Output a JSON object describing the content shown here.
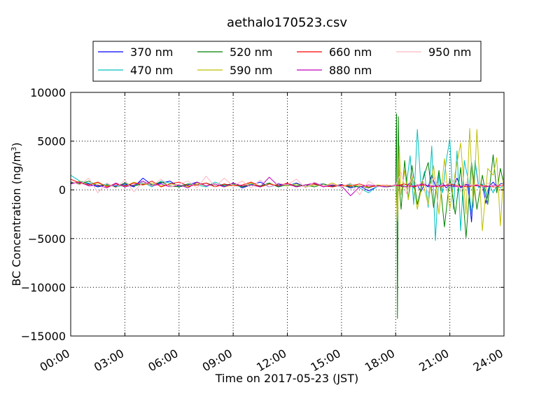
{
  "chart_data": {
    "type": "line",
    "title": "aethalo170523.csv",
    "xlabel": "Time on 2017-05-23 (JST)",
    "ylabel_main": "BC Concentration (ng/m",
    "ylabel_sup": "3",
    "ylabel_close": ")",
    "xlim_hours": [
      0,
      24
    ],
    "ylim": [
      -15000,
      10000
    ],
    "x_ticks": [
      {
        "hour": 0,
        "label": "00:00"
      },
      {
        "hour": 3,
        "label": "03:00"
      },
      {
        "hour": 6,
        "label": "06:00"
      },
      {
        "hour": 9,
        "label": "09:00"
      },
      {
        "hour": 12,
        "label": "12:00"
      },
      {
        "hour": 15,
        "label": "15:00"
      },
      {
        "hour": 18,
        "label": "18:00"
      },
      {
        "hour": 21,
        "label": "21:00"
      },
      {
        "hour": 24,
        "label": "24:00"
      }
    ],
    "y_ticks": [
      {
        "value": 10000,
        "label": "10000"
      },
      {
        "value": 5000,
        "label": "5000"
      },
      {
        "value": 0,
        "label": "0"
      },
      {
        "value": -5000,
        "label": "−5000"
      },
      {
        "value": -10000,
        "label": "−10000"
      },
      {
        "value": -15000,
        "label": "−15000"
      }
    ],
    "grid": true,
    "legend_position": "top",
    "series": [
      {
        "name": "370 nm",
        "color": "#0000ff",
        "x": [
          0,
          0.5,
          1,
          1.5,
          2,
          2.5,
          3,
          3.5,
          4,
          4.5,
          5,
          5.5,
          6,
          6.5,
          7,
          7.5,
          8,
          8.5,
          9,
          9.5,
          10,
          10.5,
          11,
          11.5,
          12,
          12.5,
          13,
          13.5,
          14,
          14.5,
          15,
          15.5,
          16,
          16.5,
          17,
          17.5,
          18,
          18.2,
          18.4,
          18.6,
          18.8,
          19,
          19.2,
          19.4,
          19.6,
          19.8,
          20,
          20.2,
          20.4,
          20.6,
          20.8,
          21,
          21.2,
          21.4,
          21.6,
          21.8,
          22,
          22.2,
          22.4,
          22.6,
          22.8,
          23,
          23.2,
          23.4,
          23.6,
          23.8,
          24
        ],
        "values": [
          700,
          800,
          600,
          300,
          500,
          400,
          600,
          300,
          1200,
          500,
          700,
          900,
          300,
          500,
          800,
          400,
          600,
          350,
          700,
          200,
          500,
          800,
          300,
          600,
          400,
          700,
          300,
          500,
          600,
          350,
          550,
          200,
          400,
          -100,
          350,
          300,
          450,
          500,
          400,
          300,
          800,
          200,
          500,
          -200,
          600,
          300,
          1500,
          400,
          300,
          700,
          200,
          600,
          300,
          1200,
          200,
          500,
          600,
          -3300,
          2800,
          300,
          600,
          -1400,
          400,
          800,
          300,
          600,
          700
        ]
      },
      {
        "name": "470 nm",
        "color": "#00bfbf",
        "x": [
          0,
          0.5,
          1,
          1.5,
          2,
          2.5,
          3,
          3.5,
          4,
          4.5,
          5,
          5.5,
          6,
          6.5,
          7,
          7.5,
          8,
          8.5,
          9,
          9.5,
          10,
          10.5,
          11,
          11.5,
          12,
          12.5,
          13,
          13.5,
          14,
          14.5,
          15,
          15.5,
          16,
          16.5,
          17,
          17.5,
          18,
          18.2,
          18.4,
          18.6,
          18.8,
          19,
          19.2,
          19.4,
          19.6,
          19.8,
          20,
          20.2,
          20.4,
          20.6,
          20.8,
          21,
          21.2,
          21.4,
          21.6,
          21.8,
          22,
          22.2,
          22.4,
          22.6,
          22.8,
          23,
          23.2,
          23.4,
          23.6,
          23.8,
          24
        ],
        "values": [
          1500,
          900,
          700,
          400,
          600,
          300,
          500,
          400,
          800,
          300,
          900,
          700,
          400,
          600,
          500,
          300,
          800,
          400,
          500,
          300,
          600,
          400,
          700,
          300,
          500,
          600,
          300,
          700,
          400,
          500,
          300,
          600,
          200,
          -300,
          400,
          300,
          500,
          400,
          300,
          600,
          3500,
          -1500,
          6200,
          300,
          1900,
          -1800,
          4500,
          -5200,
          1800,
          -300,
          3000,
          5200,
          -2000,
          4000,
          -4200,
          3000,
          1200,
          -2500,
          3000,
          200,
          600,
          -600,
          500,
          -300,
          400,
          200,
          500
        ]
      },
      {
        "name": "520 nm",
        "color": "#008000",
        "x": [
          0,
          0.5,
          1,
          1.5,
          2,
          2.5,
          3,
          3.5,
          4,
          4.5,
          5,
          5.5,
          6,
          6.5,
          7,
          7.5,
          8,
          8.5,
          9,
          9.5,
          10,
          10.5,
          11,
          11.5,
          12,
          12.5,
          13,
          13.5,
          14,
          14.5,
          15,
          15.5,
          16,
          16.5,
          17,
          17.5,
          18,
          18.05,
          18.1,
          18.15,
          18.2,
          18.3,
          18.5,
          18.7,
          18.9,
          19.2,
          19.5,
          19.8,
          20.1,
          20.4,
          20.7,
          21,
          21.3,
          21.6,
          21.9,
          22.2,
          22.5,
          22.8,
          23.1,
          23.4,
          23.6,
          23.8,
          24
        ],
        "values": [
          800,
          600,
          900,
          400,
          500,
          300,
          700,
          400,
          600,
          500,
          800,
          400,
          300,
          600,
          500,
          700,
          400,
          500,
          600,
          300,
          500,
          400,
          700,
          300,
          600,
          400,
          500,
          300,
          600,
          400,
          500,
          300,
          400,
          200,
          500,
          300,
          400,
          7800,
          -13200,
          7500,
          300,
          -2000,
          3000,
          -1000,
          2500,
          -1500,
          1000,
          2800,
          -1800,
          2000,
          -3800,
          1200,
          -2500,
          2300,
          -4900,
          2800,
          -2000,
          1500,
          -1500,
          3600,
          -300,
          2200,
          500
        ]
      },
      {
        "name": "590 nm",
        "color": "#bfbf00",
        "x": [
          0,
          0.5,
          1,
          1.5,
          2,
          2.5,
          3,
          3.5,
          4,
          4.5,
          5,
          5.5,
          6,
          6.5,
          7,
          7.5,
          8,
          8.5,
          9,
          9.5,
          10,
          10.5,
          11,
          11.5,
          12,
          12.5,
          13,
          13.5,
          14,
          14.5,
          15,
          15.5,
          16,
          16.5,
          17,
          17.5,
          18,
          18.1,
          18.2,
          18.3,
          18.5,
          18.7,
          18.9,
          19.2,
          19.5,
          19.8,
          20.1,
          20.4,
          20.7,
          21,
          21.3,
          21.6,
          21.9,
          22.1,
          22.3,
          22.5,
          22.8,
          23.1,
          23.4,
          23.6,
          23.8,
          24
        ],
        "values": [
          600,
          900,
          500,
          700,
          400,
          600,
          300,
          800,
          500,
          700,
          400,
          600,
          500,
          300,
          700,
          400,
          600,
          300,
          500,
          400,
          700,
          300,
          600,
          500,
          400,
          600,
          300,
          500,
          400,
          700,
          300,
          500,
          400,
          300,
          500,
          400,
          500,
          -3200,
          4500,
          -500,
          2000,
          -1000,
          1500,
          -2000,
          800,
          -1500,
          2500,
          -2500,
          3200,
          -2000,
          1800,
          4800,
          -2500,
          6300,
          -1800,
          6200,
          -4200,
          2200,
          1500,
          3300,
          -3700,
          2200
        ]
      },
      {
        "name": "660 nm",
        "color": "#ff0000",
        "x": [
          0,
          0.5,
          1,
          1.5,
          2,
          2.5,
          3,
          3.5,
          4,
          4.5,
          5,
          5.5,
          6,
          6.5,
          7,
          7.5,
          8,
          8.5,
          9,
          9.5,
          10,
          10.5,
          11,
          11.5,
          12,
          12.5,
          13,
          13.5,
          14,
          14.5,
          15,
          15.5,
          16,
          16.5,
          17,
          17.5,
          18,
          18.5,
          19,
          19.5,
          20,
          20.5,
          21,
          21.5,
          22,
          22.5,
          23,
          23.5,
          24
        ],
        "values": [
          1100,
          700,
          500,
          800,
          300,
          600,
          400,
          700,
          500,
          900,
          300,
          600,
          800,
          400,
          500,
          700,
          300,
          600,
          400,
          500,
          800,
          300,
          600,
          400,
          700,
          300,
          500,
          600,
          400,
          300,
          500,
          400,
          600,
          300,
          400,
          500,
          400,
          600,
          300,
          500,
          400,
          300,
          600,
          400,
          300,
          500,
          400,
          300,
          500
        ]
      },
      {
        "name": "880 nm",
        "color": "#bf00bf",
        "x": [
          0,
          0.5,
          1,
          1.5,
          2,
          2.5,
          3,
          3.5,
          4,
          4.5,
          5,
          5.5,
          6,
          6.5,
          7,
          7.5,
          8,
          8.5,
          9,
          9.5,
          10,
          10.5,
          11,
          11.5,
          12,
          12.5,
          13,
          13.5,
          14,
          14.5,
          15,
          15.5,
          16,
          16.5,
          17,
          17.5,
          18,
          18.5,
          19,
          19.5,
          20,
          20.5,
          21,
          21.5,
          22,
          22.5,
          23,
          23.5,
          24
        ],
        "values": [
          600,
          800,
          400,
          500,
          200,
          700,
          300,
          500,
          900,
          400,
          600,
          300,
          500,
          200,
          800,
          400,
          600,
          300,
          700,
          400,
          500,
          300,
          1300,
          400,
          600,
          300,
          500,
          700,
          300,
          500,
          400,
          -600,
          300,
          500,
          400,
          300,
          500,
          300,
          400,
          600,
          300,
          500,
          400,
          300,
          500,
          400,
          300,
          500,
          400
        ]
      },
      {
        "name": "950 nm",
        "color": "#ffb6c1",
        "x": [
          0,
          0.5,
          1,
          1.5,
          2,
          2.5,
          3,
          3.5,
          4,
          4.5,
          5,
          5.5,
          6,
          6.5,
          7,
          7.5,
          8,
          8.5,
          9,
          9.5,
          10,
          10.5,
          11,
          11.5,
          12,
          12.5,
          13,
          13.5,
          14,
          14.5,
          15,
          15.5,
          16,
          16.5,
          17,
          17.5,
          18,
          18.3,
          18.6,
          18.9,
          19.2,
          19.5,
          19.8,
          20.1,
          20.4,
          20.7,
          21,
          21.3,
          21.6,
          21.9,
          22.2,
          22.5,
          22.8,
          23.1,
          23.4,
          23.7,
          24
        ],
        "values": [
          900,
          500,
          1200,
          -300,
          700,
          200,
          1000,
          -200,
          800,
          400,
          1100,
          300,
          600,
          900,
          200,
          1400,
          300,
          1200,
          400,
          900,
          200,
          1000,
          300,
          700,
          500,
          1100,
          200,
          800,
          400,
          600,
          300,
          700,
          -500,
          900,
          300,
          500,
          400,
          1800,
          -400,
          1500,
          300,
          1000,
          -300,
          1300,
          200,
          900,
          500,
          1200,
          -200,
          800,
          400,
          600,
          300,
          700,
          200,
          500,
          400
        ]
      }
    ]
  }
}
